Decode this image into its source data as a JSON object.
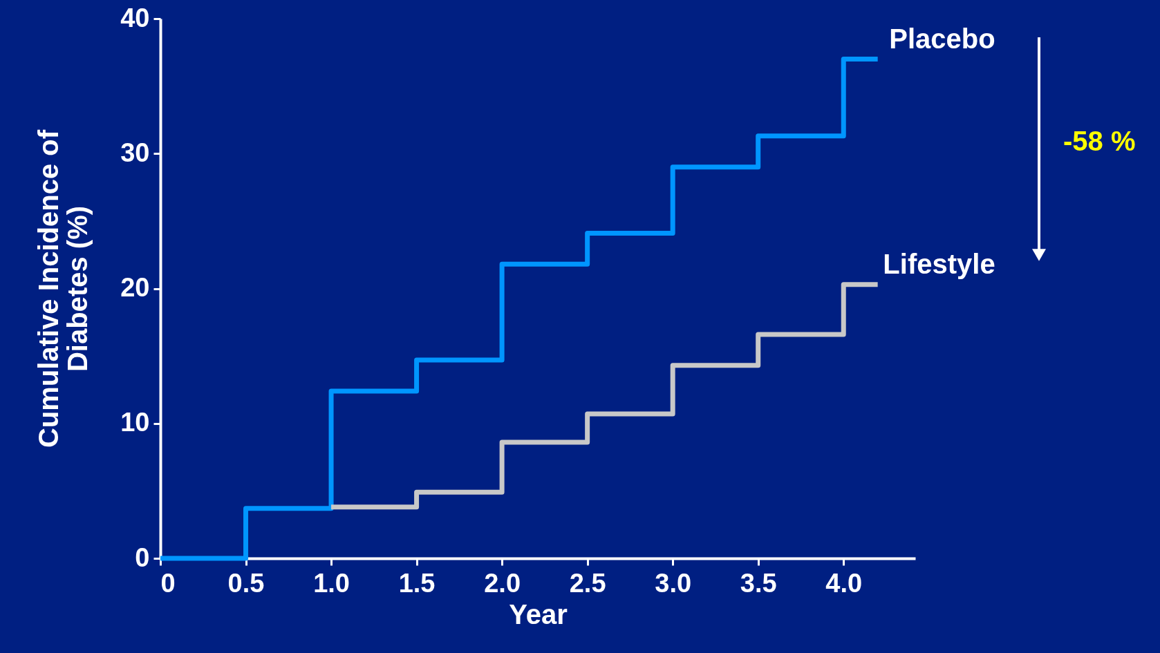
{
  "chart_data": {
    "type": "step",
    "xlabel": "Year",
    "ylabel": "Cumulative Incidence of Diabetes (%)",
    "xlim": [
      0,
      4.42
    ],
    "ylim": [
      0,
      40
    ],
    "xticks": [
      0,
      0.5,
      {
        "value": 1,
        "label": "1.0"
      },
      1.5,
      {
        "value": 2,
        "label": "2.0"
      },
      2.5,
      {
        "value": 3,
        "label": "3.0"
      },
      3.5,
      {
        "value": 4,
        "label": "4.0"
      }
    ],
    "yticks": [
      0,
      10,
      20,
      30,
      40
    ],
    "grid": false,
    "legend": false,
    "series": [
      {
        "name": "Placebo",
        "color": "#0096ff",
        "x": [
          0,
          0.5,
          1.0,
          1.5,
          2.0,
          2.5,
          3.0,
          3.5,
          4.0,
          4.2
        ],
        "values": [
          0,
          3.7,
          12.4,
          14.7,
          21.8,
          24.1,
          29.0,
          31.3,
          37.0,
          37.0
        ]
      },
      {
        "name": "Lifestyle",
        "color": "#c8c8c8",
        "x": [
          1.0,
          1.5,
          2.0,
          2.5,
          3.0,
          3.5,
          4.0,
          4.2
        ],
        "values": [
          3.8,
          4.9,
          8.6,
          10.7,
          14.3,
          16.6,
          20.3,
          20.3
        ]
      }
    ],
    "annotations": [
      "-58 %"
    ]
  }
}
